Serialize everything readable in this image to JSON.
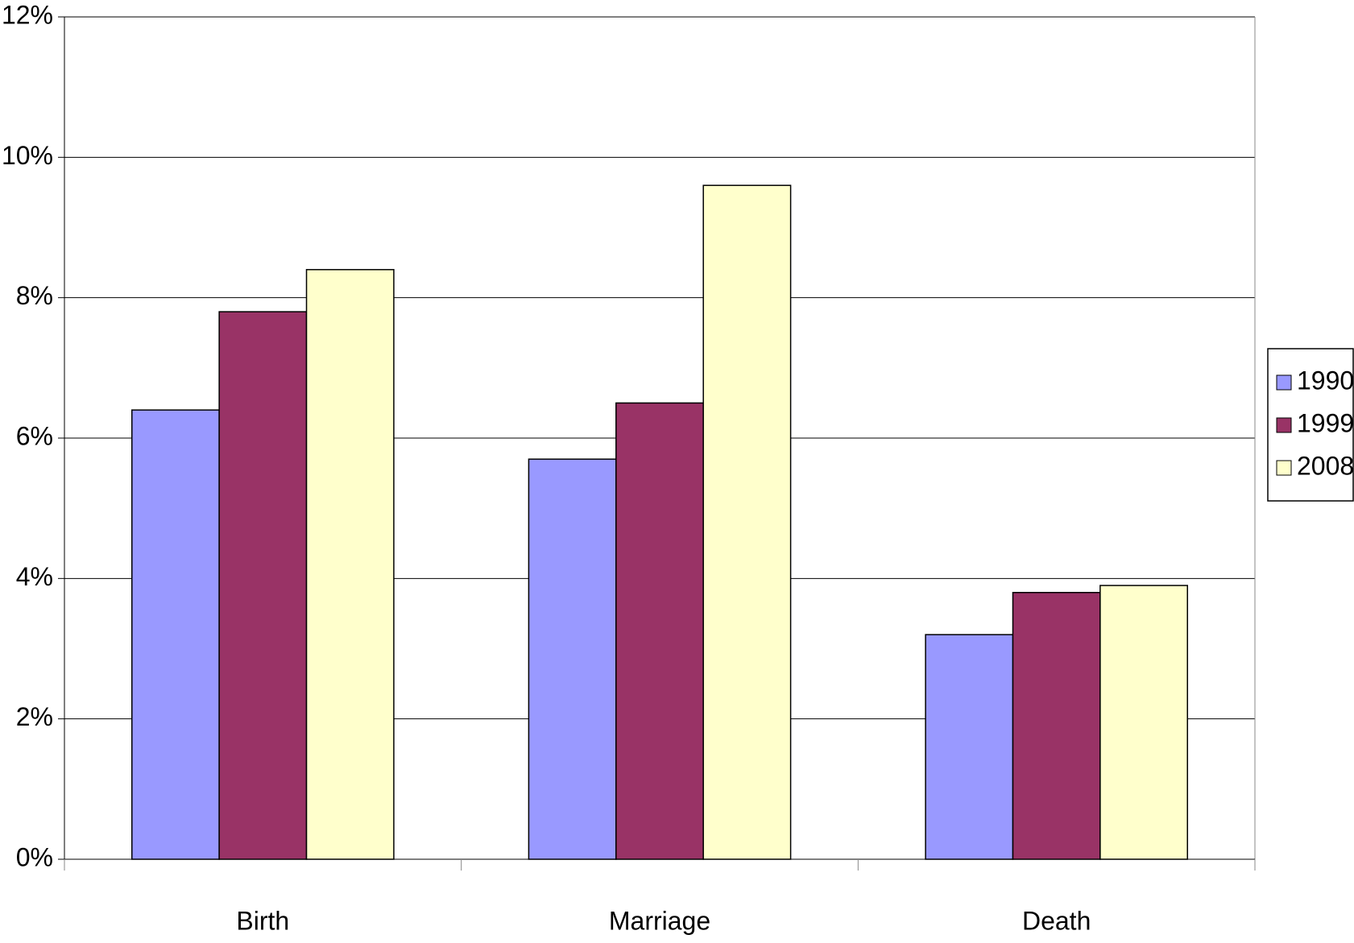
{
  "chart_data": {
    "type": "bar",
    "categories": [
      "Birth",
      "Marriage",
      "Death"
    ],
    "series": [
      {
        "name": "1990",
        "color": "#9999ff",
        "values": [
          6.4,
          5.7,
          3.2
        ]
      },
      {
        "name": "1999",
        "color": "#993366",
        "values": [
          7.8,
          6.5,
          3.8
        ]
      },
      {
        "name": "2008",
        "color": "#ffffcc",
        "values": [
          8.4,
          9.6,
          3.9
        ]
      }
    ],
    "ylim": [
      0,
      12
    ],
    "yticks": [
      {
        "value": 0,
        "label": "0%"
      },
      {
        "value": 2,
        "label": "2%"
      },
      {
        "value": 4,
        "label": "4%"
      },
      {
        "value": 6,
        "label": "6%"
      },
      {
        "value": 8,
        "label": "8%"
      },
      {
        "value": 10,
        "label": "10%"
      },
      {
        "value": 12,
        "label": "12%"
      }
    ],
    "grid": true,
    "legend": "right"
  }
}
